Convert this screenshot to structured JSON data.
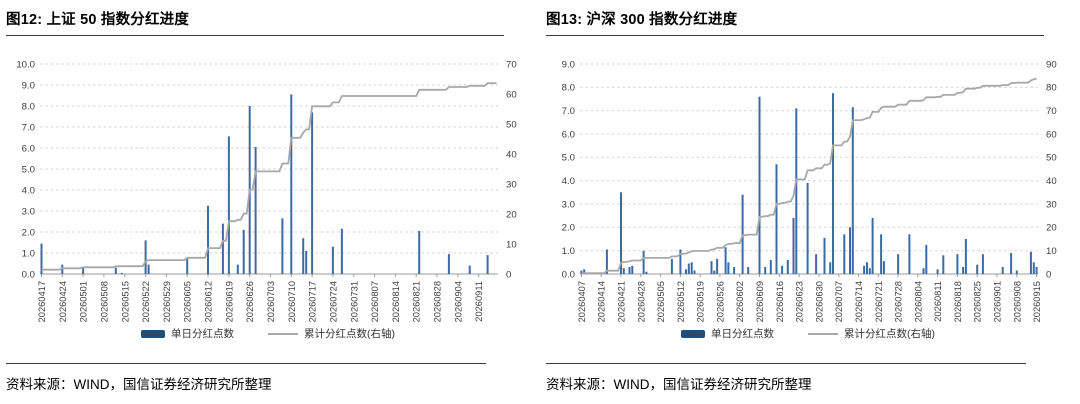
{
  "colors": {
    "bar": "#3B6BA5",
    "legend_bar": "#1F4E79",
    "line": "#A8A8A8",
    "grid": "#D2D2D2",
    "axis_line": "#9B9B9B",
    "axis_text": "#3D3D3D",
    "rule": "#3A3A3A"
  },
  "panels": {
    "left": {
      "panel_title": "图12: 上证 50 指数分红进度",
      "source": "资料来源：WIND，国信证券经济研究所整理",
      "legend": [
        {
          "label": "单日分红点数",
          "swatch": "bar"
        },
        {
          "label": "累计分红点数(右轴)",
          "swatch": "line"
        }
      ],
      "chart_data": {
        "type": "combo-bar-line",
        "title": "上证 50 指数分红进度",
        "start_date": "20260417",
        "end_date": "20260918",
        "left_axis": {
          "min": 0,
          "max": 10,
          "step": 1,
          "decimals": 1
        },
        "right_axis": {
          "min": 0,
          "max": 70,
          "step": 10
        },
        "grid": "dashed-horizontal",
        "legend_position": "bottom",
        "x_tick_labels": [
          "20260417",
          "20260424",
          "20260501",
          "20260508",
          "20260515",
          "20260522",
          "20260529",
          "20260605",
          "20260612",
          "20260619",
          "20260626",
          "20260703",
          "20260710",
          "20260717",
          "20260724",
          "20260731",
          "20260807",
          "20260814",
          "20260821",
          "20260828",
          "20260904",
          "20260911"
        ],
        "series": [
          {
            "name": "单日分红点数",
            "type": "bar",
            "axis": "left",
            "points": [
              [
                "20260417",
                1.45
              ],
              [
                "20260424",
                0.45
              ],
              [
                "20260501",
                0.35
              ],
              [
                "20260512",
                0.3
              ],
              [
                "20260514",
                0.05
              ],
              [
                "20260522",
                1.6
              ],
              [
                "20260523",
                0.45
              ],
              [
                "20260605",
                0.75
              ],
              [
                "20260612",
                3.25
              ],
              [
                "20260617",
                2.4
              ],
              [
                "20260619",
                6.55
              ],
              [
                "20260622",
                0.45
              ],
              [
                "20260624",
                2.1
              ],
              [
                "20260626",
                8.0
              ],
              [
                "20260628",
                6.05
              ],
              [
                "20260707",
                2.65
              ],
              [
                "20260710",
                8.55
              ],
              [
                "20260714",
                1.7
              ],
              [
                "20260715",
                1.1
              ],
              [
                "20260717",
                7.7
              ],
              [
                "20260724",
                1.3
              ],
              [
                "20260727",
                2.15
              ],
              [
                "20260822",
                2.05
              ],
              [
                "20260901",
                0.95
              ],
              [
                "20260908",
                0.4
              ],
              [
                "20260914",
                0.9
              ]
            ]
          },
          {
            "name": "累计分红点数(右轴)",
            "type": "line",
            "axis": "right",
            "derivation": "cumulative_sum_of_daily_bars",
            "end_value": 63.65
          }
        ]
      }
    },
    "right": {
      "panel_title": "图13: 沪深 300 指数分红进度",
      "source": "资料来源：WIND，国信证券经济研究所整理",
      "legend": [
        {
          "label": "单日分红点数",
          "swatch": "bar"
        },
        {
          "label": "累计分红点数(右轴)",
          "swatch": "line"
        }
      ],
      "chart_data": {
        "type": "combo-bar-line",
        "title": "沪深 300 指数分红进度",
        "start_date": "20260407",
        "end_date": "20260916",
        "left_axis": {
          "min": 0,
          "max": 9,
          "step": 1,
          "decimals": 1
        },
        "right_axis": {
          "min": 0,
          "max": 90,
          "step": 10
        },
        "grid": "dashed-horizontal",
        "legend_position": "bottom",
        "x_tick_labels": [
          "20260407",
          "20260414",
          "20260421",
          "20260428",
          "20260505",
          "20260512",
          "20260519",
          "20260526",
          "20260602",
          "20260609",
          "20260616",
          "20260623",
          "20260630",
          "20260707",
          "20260714",
          "20260721",
          "20260728",
          "20260804",
          "20260811",
          "20260818",
          "20260825",
          "20260901",
          "20260908",
          "20260915"
        ],
        "series": [
          {
            "name": "单日分红点数",
            "type": "bar",
            "axis": "left",
            "points": [
              [
                "20260407",
                0.15
              ],
              [
                "20260408",
                0.2
              ],
              [
                "20260416",
                1.05
              ],
              [
                "20260421",
                3.5
              ],
              [
                "20260422",
                0.25
              ],
              [
                "20260424",
                0.3
              ],
              [
                "20260425",
                0.35
              ],
              [
                "20260429",
                1.0
              ],
              [
                "20260430",
                0.1
              ],
              [
                "20260509",
                0.65
              ],
              [
                "20260512",
                1.05
              ],
              [
                "20260514",
                0.2
              ],
              [
                "20260515",
                0.45
              ],
              [
                "20260516",
                0.5
              ],
              [
                "20260517",
                0.15
              ],
              [
                "20260523",
                0.55
              ],
              [
                "20260524",
                0.15
              ],
              [
                "20260525",
                0.65
              ],
              [
                "20260528",
                1.15
              ],
              [
                "20260529",
                0.5
              ],
              [
                "20260531",
                0.3
              ],
              [
                "20260603",
                3.4
              ],
              [
                "20260605",
                0.3
              ],
              [
                "20260609",
                7.6
              ],
              [
                "20260611",
                0.3
              ],
              [
                "20260613",
                0.6
              ],
              [
                "20260615",
                4.7
              ],
              [
                "20260617",
                0.35
              ],
              [
                "20260619",
                0.6
              ],
              [
                "20260621",
                2.4
              ],
              [
                "20260622",
                7.1
              ],
              [
                "20260626",
                3.9
              ],
              [
                "20260629",
                0.85
              ],
              [
                "20260702",
                1.55
              ],
              [
                "20260704",
                0.5
              ],
              [
                "20260705",
                7.75
              ],
              [
                "20260709",
                1.7
              ],
              [
                "20260711",
                2.0
              ],
              [
                "20260712",
                7.15
              ],
              [
                "20260716",
                0.35
              ],
              [
                "20260717",
                0.5
              ],
              [
                "20260718",
                0.25
              ],
              [
                "20260719",
                2.4
              ],
              [
                "20260722",
                1.7
              ],
              [
                "20260723",
                0.55
              ],
              [
                "20260728",
                0.85
              ],
              [
                "20260801",
                1.7
              ],
              [
                "20260806",
                0.25
              ],
              [
                "20260807",
                1.25
              ],
              [
                "20260811",
                0.2
              ],
              [
                "20260813",
                0.8
              ],
              [
                "20260818",
                0.85
              ],
              [
                "20260820",
                0.3
              ],
              [
                "20260821",
                1.5
              ],
              [
                "20260825",
                0.4
              ],
              [
                "20260827",
                0.85
              ],
              [
                "20260903",
                0.3
              ],
              [
                "20260906",
                0.9
              ],
              [
                "20260908",
                0.15
              ],
              [
                "20260913",
                0.95
              ],
              [
                "20260914",
                0.5
              ],
              [
                "20260915",
                0.3
              ]
            ]
          },
          {
            "name": "累计分红点数(右轴)",
            "type": "line",
            "axis": "right",
            "derivation": "cumulative_sum_of_daily_bars",
            "end_value": 83.75
          }
        ]
      }
    }
  }
}
